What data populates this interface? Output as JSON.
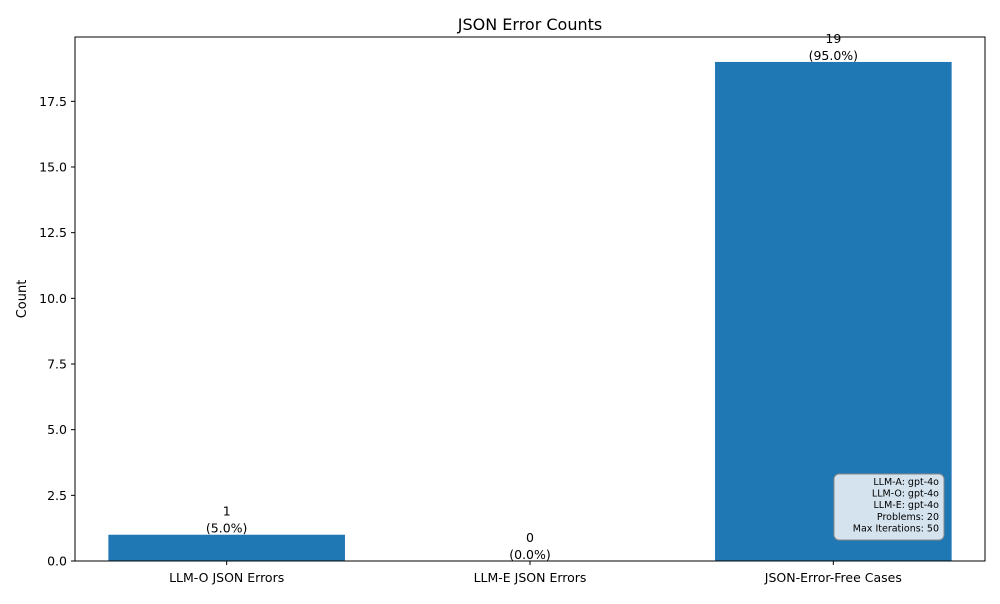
{
  "chart_data": {
    "type": "bar",
    "title": "JSON Error Counts",
    "xlabel": "",
    "ylabel": "Count",
    "categories": [
      "LLM-O JSON Errors",
      "LLM-E JSON Errors",
      "JSON-Error-Free Cases"
    ],
    "values": [
      1,
      0,
      19
    ],
    "value_labels": [
      "1",
      "0",
      "19"
    ],
    "percent_labels": [
      "(5.0%)",
      "(0.0%)",
      "(95.0%)"
    ],
    "ylim": [
      0,
      19.95
    ],
    "yticks": [
      0,
      2.5,
      5,
      7.5,
      10,
      12.5,
      15,
      17.5
    ],
    "ytick_labels": [
      "0.0",
      "2.5",
      "5.0",
      "7.5",
      "10.0",
      "12.5",
      "15.0",
      "17.5"
    ],
    "grid": false,
    "bar_color": "#1f77b4",
    "info_box": {
      "lines": [
        "LLM-A: gpt-4o",
        "LLM-O: gpt-4o",
        "LLM-E: gpt-4o",
        "Problems: 20",
        "Max Iterations: 50"
      ],
      "background": "#d4e3ee",
      "border": "#888888"
    }
  }
}
